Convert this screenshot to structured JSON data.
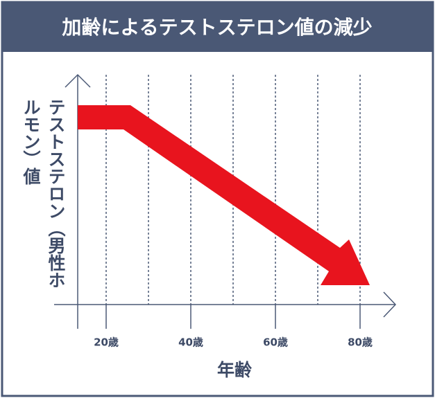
{
  "header": {
    "title": "加齢によるテストステロン値の減少"
  },
  "chart": {
    "y_axis_label": "テストステロン（男性ホルモン）値",
    "x_axis_label": "年齢",
    "x_tick_labels": [
      "20歳",
      "40歳",
      "60歳",
      "80歳"
    ]
  }
}
